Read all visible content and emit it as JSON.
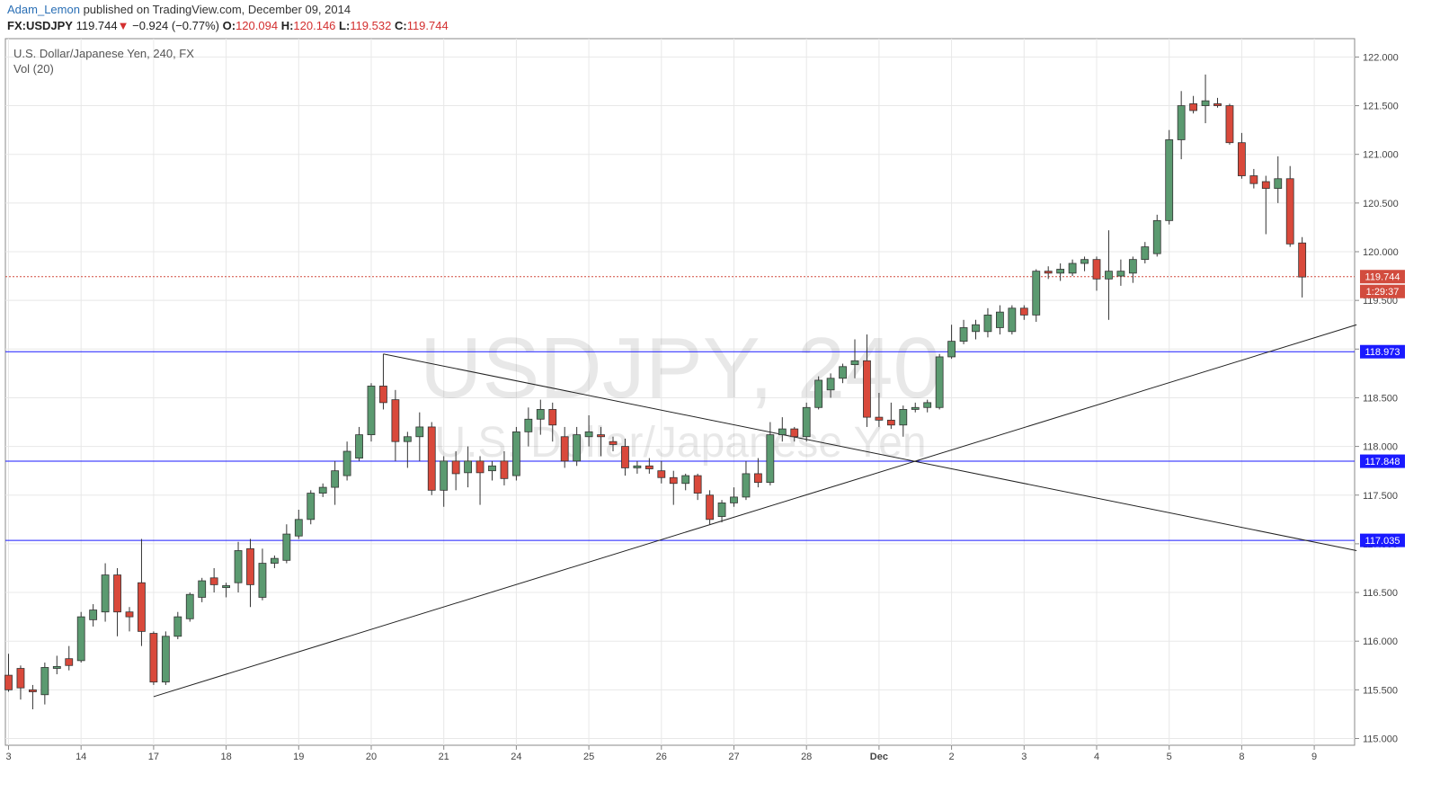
{
  "header": {
    "author": "Adam_Lemon",
    "published_text": "published on TradingView.com, December 09, 2014",
    "symbol": "FX:USDJPY",
    "last": "119.744",
    "change": "−0.924 (−0.77%)",
    "open_label": "O:",
    "open": "120.094",
    "high_label": "H:",
    "high": "120.146",
    "low_label": "L:",
    "low": "119.532",
    "close_label": "C:",
    "close": "119.744"
  },
  "pane": {
    "title": "U.S. Dollar/Japanese Yen, 240, FX",
    "indicator": "Vol (20)"
  },
  "watermark": {
    "symbol": "USDJPY, 240",
    "name": "U.S. Dollar/Japanese Yen"
  },
  "colors": {
    "up": "#5b9a70",
    "down": "#d9493b",
    "level_lines": "#1a1aff",
    "grid": "#e8e8e8",
    "price_tag": "#d24c3e"
  },
  "chart_data": {
    "type": "candlestick",
    "ylim": [
      114.9,
      122.1
    ],
    "y_ticks": [
      "115.000",
      "115.500",
      "116.000",
      "116.500",
      "117.000",
      "117.500",
      "118.000",
      "118.500",
      "119.000",
      "119.500",
      "120.000",
      "120.500",
      "121.000",
      "121.500",
      "122.000"
    ],
    "x_ticks": [
      "3",
      "14",
      "17",
      "18",
      "19",
      "20",
      "21",
      "24",
      "25",
      "26",
      "27",
      "28",
      "Dec",
      "2",
      "3",
      "4",
      "5",
      "8",
      "9"
    ],
    "grid": true,
    "horizontal_levels": [
      {
        "value": 118.973,
        "label": "118.973"
      },
      {
        "value": 117.848,
        "label": "117.848"
      },
      {
        "value": 117.035,
        "label": "117.035"
      }
    ],
    "current_price": {
      "value": 119.744,
      "label": "119.744",
      "countdown": "1:29:37"
    },
    "trendlines": [
      {
        "from": {
          "bar": 12,
          "price": 115.43
        },
        "to": {
          "bar": 111.5,
          "price": 119.25
        }
      },
      {
        "from": {
          "bar": 31,
          "price": 118.95
        },
        "to": {
          "bar": 111.5,
          "price": 116.93
        }
      }
    ],
    "candles": [
      {
        "o": 115.65,
        "h": 115.87,
        "l": 115.48,
        "c": 115.5
      },
      {
        "o": 115.72,
        "h": 115.75,
        "l": 115.4,
        "c": 115.52
      },
      {
        "o": 115.5,
        "h": 115.55,
        "l": 115.3,
        "c": 115.48
      },
      {
        "o": 115.45,
        "h": 115.78,
        "l": 115.35,
        "c": 115.73
      },
      {
        "o": 115.72,
        "h": 115.85,
        "l": 115.66,
        "c": 115.74
      },
      {
        "o": 115.82,
        "h": 115.95,
        "l": 115.7,
        "c": 115.75
      },
      {
        "o": 115.8,
        "h": 116.3,
        "l": 115.78,
        "c": 116.25
      },
      {
        "o": 116.22,
        "h": 116.38,
        "l": 116.15,
        "c": 116.32
      },
      {
        "o": 116.3,
        "h": 116.8,
        "l": 116.2,
        "c": 116.68
      },
      {
        "o": 116.68,
        "h": 116.75,
        "l": 116.05,
        "c": 116.3
      },
      {
        "o": 116.3,
        "h": 116.35,
        "l": 116.1,
        "c": 116.25
      },
      {
        "o": 116.6,
        "h": 117.05,
        "l": 115.95,
        "c": 116.1
      },
      {
        "o": 116.08,
        "h": 116.1,
        "l": 115.55,
        "c": 115.58
      },
      {
        "o": 115.58,
        "h": 116.1,
        "l": 115.55,
        "c": 116.05
      },
      {
        "o": 116.05,
        "h": 116.3,
        "l": 116.02,
        "c": 116.25
      },
      {
        "o": 116.23,
        "h": 116.5,
        "l": 116.2,
        "c": 116.48
      },
      {
        "o": 116.45,
        "h": 116.65,
        "l": 116.4,
        "c": 116.62
      },
      {
        "o": 116.65,
        "h": 116.75,
        "l": 116.5,
        "c": 116.58
      },
      {
        "o": 116.55,
        "h": 116.6,
        "l": 116.45,
        "c": 116.57
      },
      {
        "o": 116.6,
        "h": 117.02,
        "l": 116.5,
        "c": 116.93
      },
      {
        "o": 116.95,
        "h": 117.05,
        "l": 116.35,
        "c": 116.58
      },
      {
        "o": 116.45,
        "h": 116.95,
        "l": 116.42,
        "c": 116.8
      },
      {
        "o": 116.8,
        "h": 116.88,
        "l": 116.75,
        "c": 116.85
      },
      {
        "o": 116.83,
        "h": 117.2,
        "l": 116.8,
        "c": 117.1
      },
      {
        "o": 117.08,
        "h": 117.35,
        "l": 117.05,
        "c": 117.25
      },
      {
        "o": 117.25,
        "h": 117.55,
        "l": 117.2,
        "c": 117.52
      },
      {
        "o": 117.52,
        "h": 117.62,
        "l": 117.48,
        "c": 117.58
      },
      {
        "o": 117.58,
        "h": 117.85,
        "l": 117.4,
        "c": 117.75
      },
      {
        "o": 117.7,
        "h": 118.05,
        "l": 117.65,
        "c": 117.95
      },
      {
        "o": 117.88,
        "h": 118.2,
        "l": 117.85,
        "c": 118.12
      },
      {
        "o": 118.12,
        "h": 118.65,
        "l": 118.05,
        "c": 118.62
      },
      {
        "o": 118.62,
        "h": 118.95,
        "l": 118.38,
        "c": 118.45
      },
      {
        "o": 118.48,
        "h": 118.58,
        "l": 117.85,
        "c": 118.05
      },
      {
        "o": 118.05,
        "h": 118.15,
        "l": 117.78,
        "c": 118.1
      },
      {
        "o": 118.1,
        "h": 118.35,
        "l": 117.85,
        "c": 118.2
      },
      {
        "o": 118.2,
        "h": 118.25,
        "l": 117.5,
        "c": 117.55
      },
      {
        "o": 117.55,
        "h": 117.9,
        "l": 117.38,
        "c": 117.85
      },
      {
        "o": 117.85,
        "h": 117.95,
        "l": 117.55,
        "c": 117.72
      },
      {
        "o": 117.73,
        "h": 118.0,
        "l": 117.58,
        "c": 117.85
      },
      {
        "o": 117.85,
        "h": 117.9,
        "l": 117.4,
        "c": 117.73
      },
      {
        "o": 117.75,
        "h": 117.85,
        "l": 117.65,
        "c": 117.8
      },
      {
        "o": 117.85,
        "h": 117.95,
        "l": 117.6,
        "c": 117.67
      },
      {
        "o": 117.7,
        "h": 118.2,
        "l": 117.65,
        "c": 118.15
      },
      {
        "o": 118.15,
        "h": 118.4,
        "l": 118.0,
        "c": 118.28
      },
      {
        "o": 118.28,
        "h": 118.48,
        "l": 118.12,
        "c": 118.38
      },
      {
        "o": 118.38,
        "h": 118.45,
        "l": 118.05,
        "c": 118.22
      },
      {
        "o": 118.1,
        "h": 118.2,
        "l": 117.78,
        "c": 117.85
      },
      {
        "o": 117.85,
        "h": 118.2,
        "l": 117.8,
        "c": 118.12
      },
      {
        "o": 118.1,
        "h": 118.32,
        "l": 118.0,
        "c": 118.15
      },
      {
        "o": 118.12,
        "h": 118.2,
        "l": 117.9,
        "c": 118.1
      },
      {
        "o": 118.05,
        "h": 118.1,
        "l": 117.95,
        "c": 118.02
      },
      {
        "o": 118.0,
        "h": 118.08,
        "l": 117.7,
        "c": 117.78
      },
      {
        "o": 117.78,
        "h": 117.85,
        "l": 117.72,
        "c": 117.8
      },
      {
        "o": 117.8,
        "h": 117.88,
        "l": 117.72,
        "c": 117.77
      },
      {
        "o": 117.75,
        "h": 117.85,
        "l": 117.62,
        "c": 117.68
      },
      {
        "o": 117.68,
        "h": 117.75,
        "l": 117.4,
        "c": 117.62
      },
      {
        "o": 117.62,
        "h": 117.72,
        "l": 117.55,
        "c": 117.7
      },
      {
        "o": 117.7,
        "h": 117.72,
        "l": 117.45,
        "c": 117.52
      },
      {
        "o": 117.5,
        "h": 117.55,
        "l": 117.2,
        "c": 117.25
      },
      {
        "o": 117.28,
        "h": 117.45,
        "l": 117.22,
        "c": 117.42
      },
      {
        "o": 117.42,
        "h": 117.58,
        "l": 117.38,
        "c": 117.48
      },
      {
        "o": 117.48,
        "h": 117.85,
        "l": 117.45,
        "c": 117.72
      },
      {
        "o": 117.72,
        "h": 117.88,
        "l": 117.58,
        "c": 117.63
      },
      {
        "o": 117.63,
        "h": 118.25,
        "l": 117.6,
        "c": 118.12
      },
      {
        "o": 118.12,
        "h": 118.3,
        "l": 118.05,
        "c": 118.18
      },
      {
        "o": 118.18,
        "h": 118.2,
        "l": 118.05,
        "c": 118.1
      },
      {
        "o": 118.1,
        "h": 118.45,
        "l": 118.05,
        "c": 118.4
      },
      {
        "o": 118.4,
        "h": 118.72,
        "l": 118.38,
        "c": 118.68
      },
      {
        "o": 118.58,
        "h": 118.75,
        "l": 118.5,
        "c": 118.7
      },
      {
        "o": 118.7,
        "h": 118.85,
        "l": 118.65,
        "c": 118.82
      },
      {
        "o": 118.84,
        "h": 119.1,
        "l": 118.7,
        "c": 118.88
      },
      {
        "o": 118.88,
        "h": 119.15,
        "l": 118.2,
        "c": 118.3
      },
      {
        "o": 118.3,
        "h": 118.55,
        "l": 118.2,
        "c": 118.27
      },
      {
        "o": 118.27,
        "h": 118.45,
        "l": 118.18,
        "c": 118.22
      },
      {
        "o": 118.22,
        "h": 118.42,
        "l": 118.1,
        "c": 118.38
      },
      {
        "o": 118.38,
        "h": 118.45,
        "l": 118.35,
        "c": 118.4
      },
      {
        "o": 118.4,
        "h": 118.48,
        "l": 118.35,
        "c": 118.45
      },
      {
        "o": 118.4,
        "h": 118.95,
        "l": 118.38,
        "c": 118.92
      },
      {
        "o": 118.92,
        "h": 119.25,
        "l": 118.9,
        "c": 119.08
      },
      {
        "o": 119.08,
        "h": 119.3,
        "l": 119.05,
        "c": 119.22
      },
      {
        "o": 119.18,
        "h": 119.3,
        "l": 119.1,
        "c": 119.25
      },
      {
        "o": 119.18,
        "h": 119.42,
        "l": 119.12,
        "c": 119.35
      },
      {
        "o": 119.22,
        "h": 119.45,
        "l": 119.15,
        "c": 119.38
      },
      {
        "o": 119.18,
        "h": 119.45,
        "l": 119.15,
        "c": 119.42
      },
      {
        "o": 119.42,
        "h": 119.45,
        "l": 119.3,
        "c": 119.35
      },
      {
        "o": 119.35,
        "h": 119.82,
        "l": 119.28,
        "c": 119.8
      },
      {
        "o": 119.8,
        "h": 119.85,
        "l": 119.72,
        "c": 119.78
      },
      {
        "o": 119.78,
        "h": 119.88,
        "l": 119.7,
        "c": 119.82
      },
      {
        "o": 119.78,
        "h": 119.92,
        "l": 119.75,
        "c": 119.88
      },
      {
        "o": 119.88,
        "h": 119.95,
        "l": 119.8,
        "c": 119.92
      },
      {
        "o": 119.92,
        "h": 119.95,
        "l": 119.6,
        "c": 119.72
      },
      {
        "o": 119.72,
        "h": 120.22,
        "l": 119.3,
        "c": 119.8
      },
      {
        "o": 119.75,
        "h": 119.92,
        "l": 119.65,
        "c": 119.8
      },
      {
        "o": 119.78,
        "h": 119.95,
        "l": 119.68,
        "c": 119.92
      },
      {
        "o": 119.92,
        "h": 120.1,
        "l": 119.88,
        "c": 120.05
      },
      {
        "o": 119.98,
        "h": 120.38,
        "l": 119.95,
        "c": 120.32
      },
      {
        "o": 120.32,
        "h": 121.25,
        "l": 120.28,
        "c": 121.15
      },
      {
        "o": 121.15,
        "h": 121.65,
        "l": 120.95,
        "c": 121.5
      },
      {
        "o": 121.52,
        "h": 121.6,
        "l": 121.42,
        "c": 121.45
      },
      {
        "o": 121.5,
        "h": 121.82,
        "l": 121.32,
        "c": 121.55
      },
      {
        "o": 121.52,
        "h": 121.58,
        "l": 121.48,
        "c": 121.5
      },
      {
        "o": 121.5,
        "h": 121.52,
        "l": 121.1,
        "c": 121.12
      },
      {
        "o": 121.12,
        "h": 121.22,
        "l": 120.75,
        "c": 120.78
      },
      {
        "o": 120.78,
        "h": 120.85,
        "l": 120.65,
        "c": 120.7
      },
      {
        "o": 120.72,
        "h": 120.78,
        "l": 120.18,
        "c": 120.65
      },
      {
        "o": 120.65,
        "h": 120.98,
        "l": 120.5,
        "c": 120.75
      },
      {
        "o": 120.75,
        "h": 120.88,
        "l": 120.05,
        "c": 120.08
      },
      {
        "o": 120.09,
        "h": 120.15,
        "l": 119.53,
        "c": 119.74
      }
    ]
  }
}
